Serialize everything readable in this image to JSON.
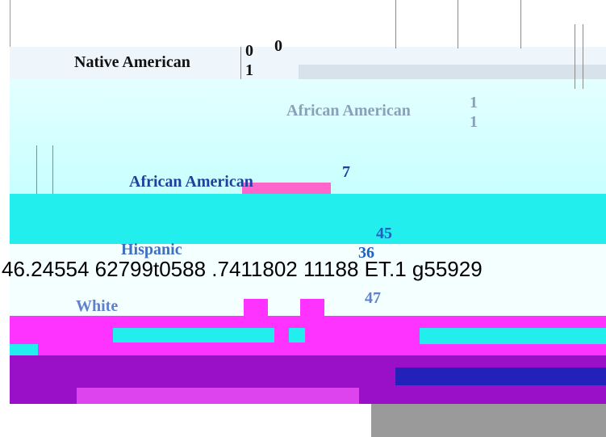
{
  "rows": [
    {
      "label": "Native American",
      "values": [
        0,
        1
      ]
    },
    {
      "label": "African American",
      "values": [
        1,
        1
      ]
    },
    {
      "label": "African American",
      "values": [
        7
      ]
    },
    {
      "label": "Hispanic",
      "values": [
        45,
        36
      ]
    },
    {
      "label": "White",
      "values": [
        47
      ]
    }
  ],
  "corrupted_text": "46.24554 62799t0588 .7411802 11188 ET.1 g55929",
  "top_value": 0
}
